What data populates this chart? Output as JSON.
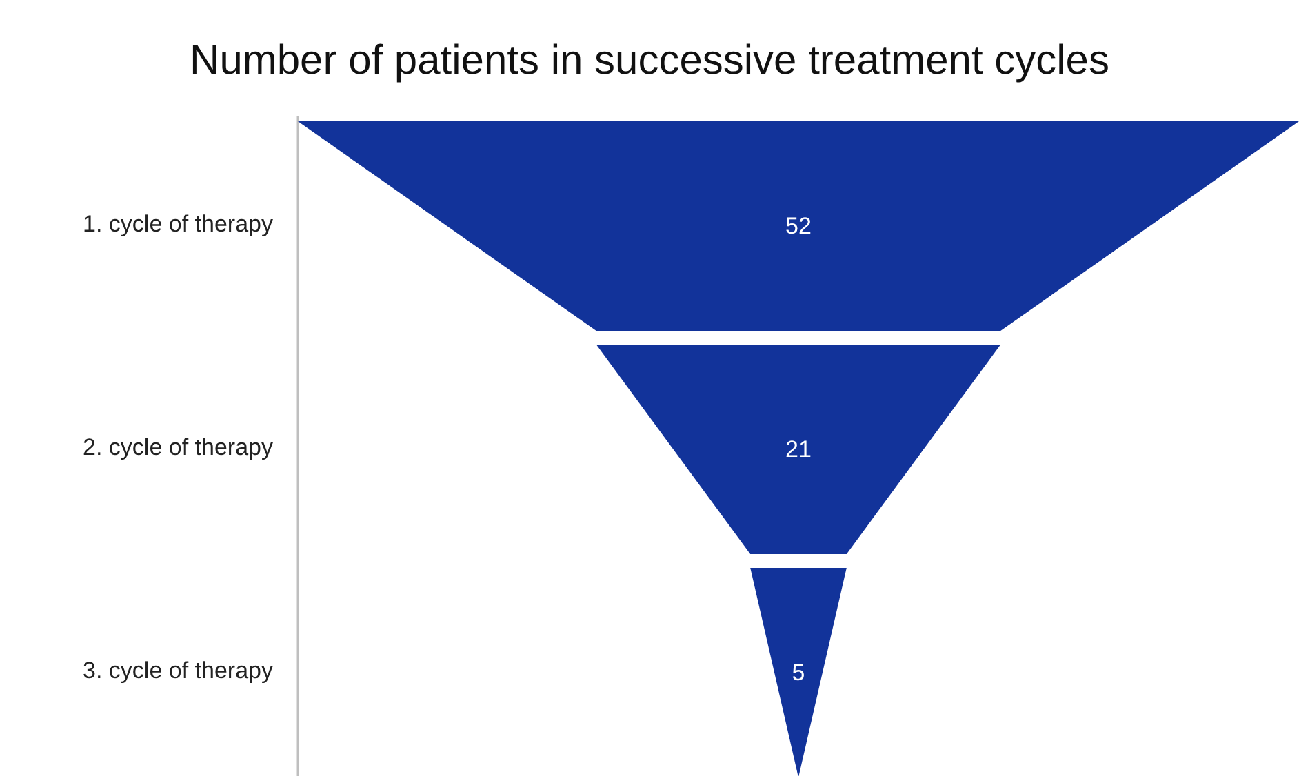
{
  "chart_data": {
    "type": "other",
    "title": "Number of patients in successive treatment cycles",
    "categories": [
      "1. cycle of therapy",
      "2. cycle of therapy",
      "3. cycle of therapy"
    ],
    "values": [
      52,
      21,
      5
    ],
    "color": "#12339a",
    "data_labels": true
  }
}
